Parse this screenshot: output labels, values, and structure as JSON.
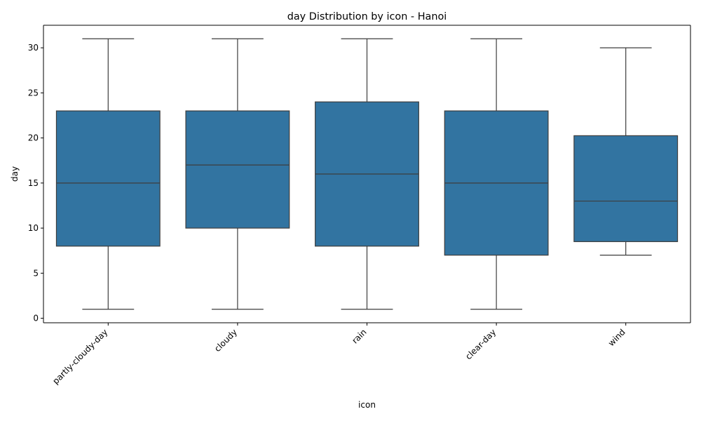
{
  "chart_data": {
    "type": "box",
    "title": "day Distribution by icon - Hanoi",
    "xlabel": "icon",
    "ylabel": "day",
    "ylim": [
      -0.5,
      32.5
    ],
    "yticks": [
      0,
      5,
      10,
      15,
      20,
      25,
      30
    ],
    "categories": [
      "partly-cloudy-day",
      "cloudy",
      "rain",
      "clear-day",
      "wind"
    ],
    "boxes": [
      {
        "category": "partly-cloudy-day",
        "whisker_low": 1,
        "q1": 8,
        "median": 15,
        "q3": 23,
        "whisker_high": 31
      },
      {
        "category": "cloudy",
        "whisker_low": 1,
        "q1": 10,
        "median": 17,
        "q3": 23,
        "whisker_high": 31
      },
      {
        "category": "rain",
        "whisker_low": 1,
        "q1": 8,
        "median": 16,
        "q3": 24,
        "whisker_high": 31
      },
      {
        "category": "clear-day",
        "whisker_low": 1,
        "q1": 7,
        "median": 15,
        "q3": 23,
        "whisker_high": 31
      },
      {
        "category": "wind",
        "whisker_low": 7,
        "q1": 8.5,
        "median": 13,
        "q3": 20.25,
        "whisker_high": 30
      }
    ],
    "box_color": "#3274a1",
    "line_color": "#3d3d3d",
    "grid": false,
    "legend": "none"
  }
}
